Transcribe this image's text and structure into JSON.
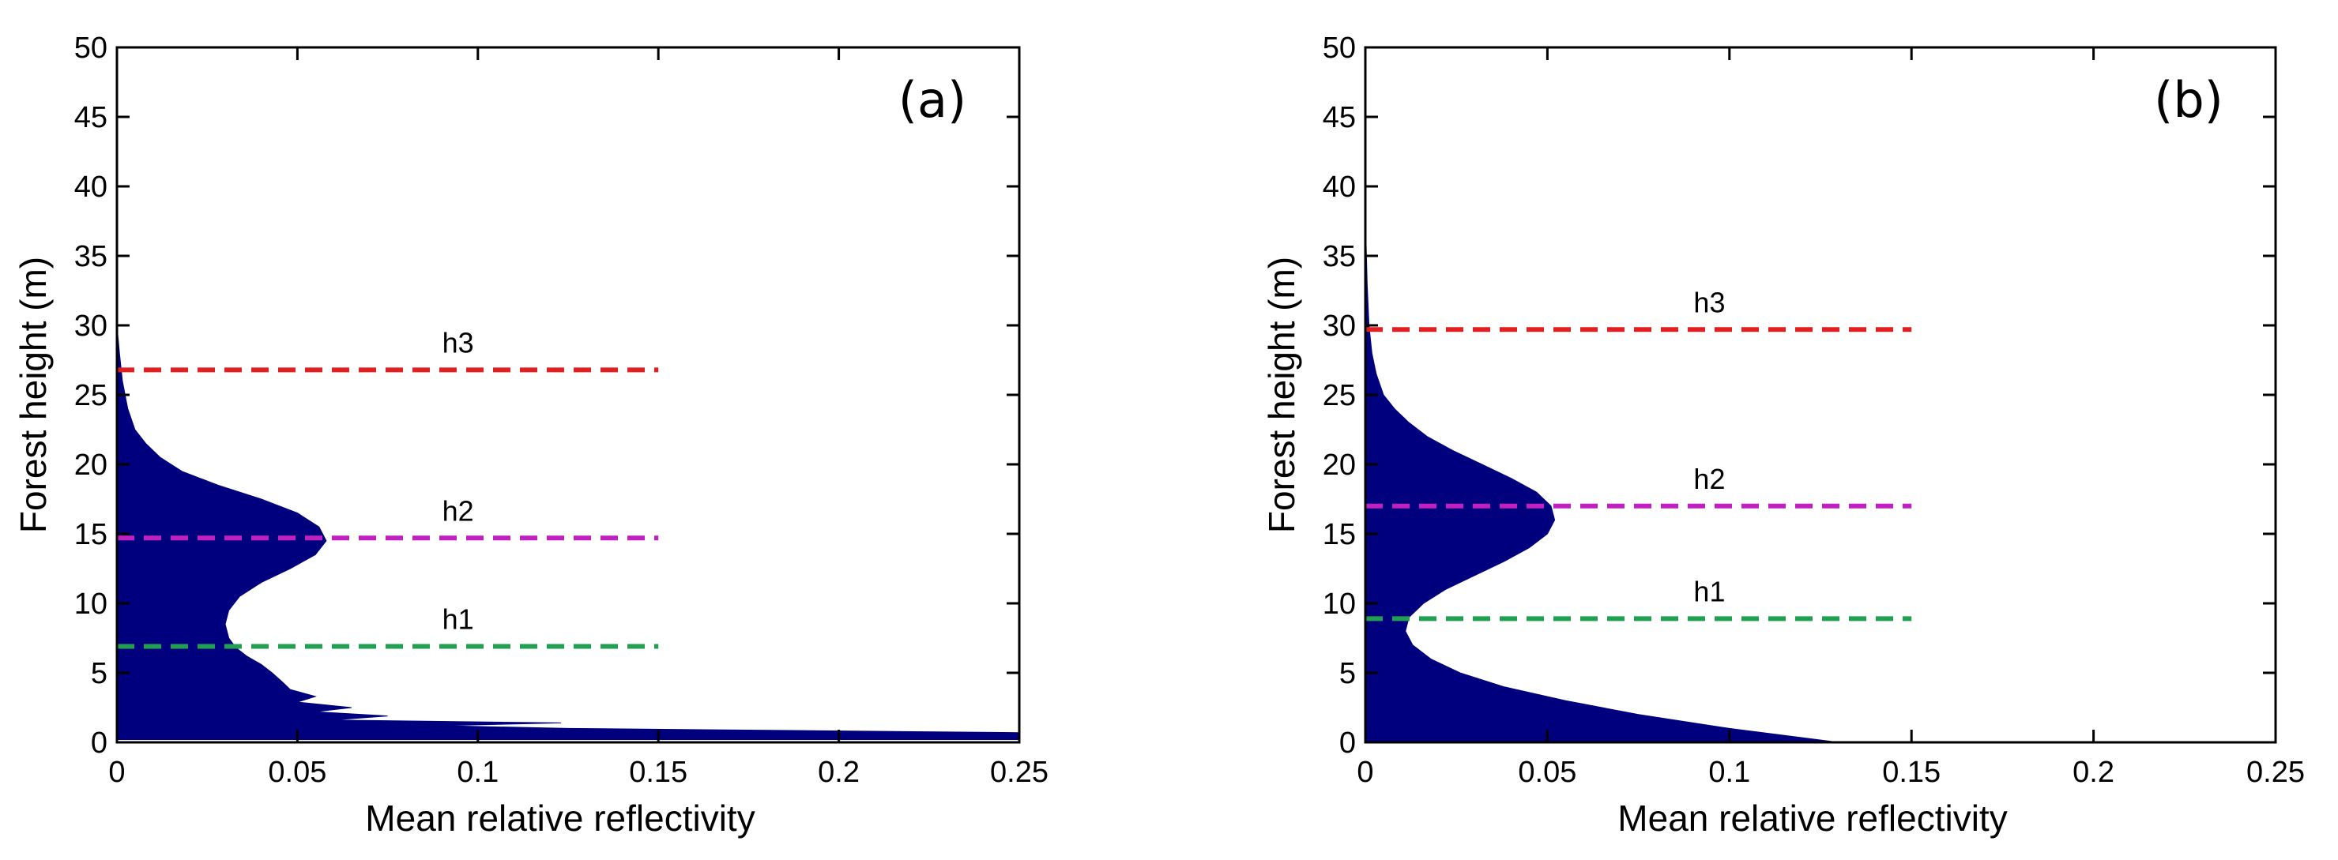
{
  "chart_data": [
    {
      "type": "area",
      "panel_label": "(a)",
      "xlabel": "Mean relative reflectivity",
      "ylabel": "Forest height (m)",
      "xlim": [
        0,
        0.25
      ],
      "ylim": [
        0,
        50
      ],
      "xticks": [
        "0",
        "0.05",
        "0.1",
        "0.15",
        "0.2",
        "0.25"
      ],
      "yticks": [
        "0",
        "5",
        "10",
        "15",
        "20",
        "25",
        "30",
        "35",
        "40",
        "45",
        "50"
      ],
      "fill_color": "#00007f",
      "profile": [
        [
          0.25,
          0.2
        ],
        [
          0.25,
          0.7
        ],
        [
          0.125,
          1.0
        ],
        [
          0.09,
          1.2
        ],
        [
          0.123,
          1.4
        ],
        [
          0.06,
          1.6
        ],
        [
          0.075,
          1.9
        ],
        [
          0.055,
          2.2
        ],
        [
          0.065,
          2.5
        ],
        [
          0.05,
          2.9
        ],
        [
          0.055,
          3.3
        ],
        [
          0.048,
          3.8
        ],
        [
          0.046,
          4.3
        ],
        [
          0.043,
          5.0
        ],
        [
          0.04,
          5.6
        ],
        [
          0.036,
          6.2
        ],
        [
          0.033,
          6.8
        ],
        [
          0.031,
          7.5
        ],
        [
          0.03,
          8.5
        ],
        [
          0.031,
          9.5
        ],
        [
          0.034,
          10.5
        ],
        [
          0.04,
          11.5
        ],
        [
          0.048,
          12.5
        ],
        [
          0.055,
          13.5
        ],
        [
          0.058,
          14.5
        ],
        [
          0.056,
          15.5
        ],
        [
          0.05,
          16.5
        ],
        [
          0.04,
          17.5
        ],
        [
          0.028,
          18.5
        ],
        [
          0.018,
          19.5
        ],
        [
          0.012,
          20.5
        ],
        [
          0.008,
          21.5
        ],
        [
          0.005,
          22.5
        ],
        [
          0.003,
          24.0
        ],
        [
          0.0015,
          26.0
        ],
        [
          0.0007,
          28.0
        ],
        [
          0.0,
          30.0
        ]
      ],
      "hlines": [
        {
          "label": "h3",
          "y": 26.8,
          "x_end": 0.15,
          "color": "#e02020"
        },
        {
          "label": "h2",
          "y": 14.7,
          "x_end": 0.15,
          "color": "#c020c0"
        },
        {
          "label": "h1",
          "y": 6.9,
          "x_end": 0.15,
          "color": "#20a050"
        }
      ]
    },
    {
      "type": "area",
      "panel_label": "(b)",
      "xlabel": "Mean relative reflectivity",
      "ylabel": "Forest height (m)",
      "xlim": [
        0,
        0.25
      ],
      "ylim": [
        0,
        50
      ],
      "xticks": [
        "0",
        "0.05",
        "0.1",
        "0.15",
        "0.2",
        "0.25"
      ],
      "yticks": [
        "0",
        "5",
        "10",
        "15",
        "20",
        "25",
        "30",
        "35",
        "40",
        "45",
        "50"
      ],
      "fill_color": "#00007f",
      "profile": [
        [
          0.13,
          0.0
        ],
        [
          0.1,
          1.0
        ],
        [
          0.075,
          2.0
        ],
        [
          0.055,
          3.0
        ],
        [
          0.038,
          4.0
        ],
        [
          0.026,
          5.0
        ],
        [
          0.018,
          6.0
        ],
        [
          0.013,
          7.0
        ],
        [
          0.011,
          8.0
        ],
        [
          0.012,
          9.0
        ],
        [
          0.016,
          10.0
        ],
        [
          0.022,
          11.0
        ],
        [
          0.03,
          12.0
        ],
        [
          0.038,
          13.0
        ],
        [
          0.045,
          14.0
        ],
        [
          0.05,
          15.0
        ],
        [
          0.052,
          16.0
        ],
        [
          0.051,
          17.0
        ],
        [
          0.047,
          18.0
        ],
        [
          0.04,
          19.0
        ],
        [
          0.032,
          20.0
        ],
        [
          0.024,
          21.0
        ],
        [
          0.017,
          22.0
        ],
        [
          0.012,
          23.0
        ],
        [
          0.008,
          24.0
        ],
        [
          0.005,
          25.0
        ],
        [
          0.003,
          26.5
        ],
        [
          0.0018,
          28.0
        ],
        [
          0.001,
          30.0
        ],
        [
          0.0005,
          33.0
        ],
        [
          0.0,
          38.0
        ]
      ],
      "hlines": [
        {
          "label": "h3",
          "y": 29.7,
          "x_end": 0.15,
          "color": "#e02020"
        },
        {
          "label": "h2",
          "y": 17.0,
          "x_end": 0.15,
          "color": "#c020c0"
        },
        {
          "label": "h1",
          "y": 8.9,
          "x_end": 0.15,
          "color": "#20a050"
        }
      ]
    }
  ]
}
